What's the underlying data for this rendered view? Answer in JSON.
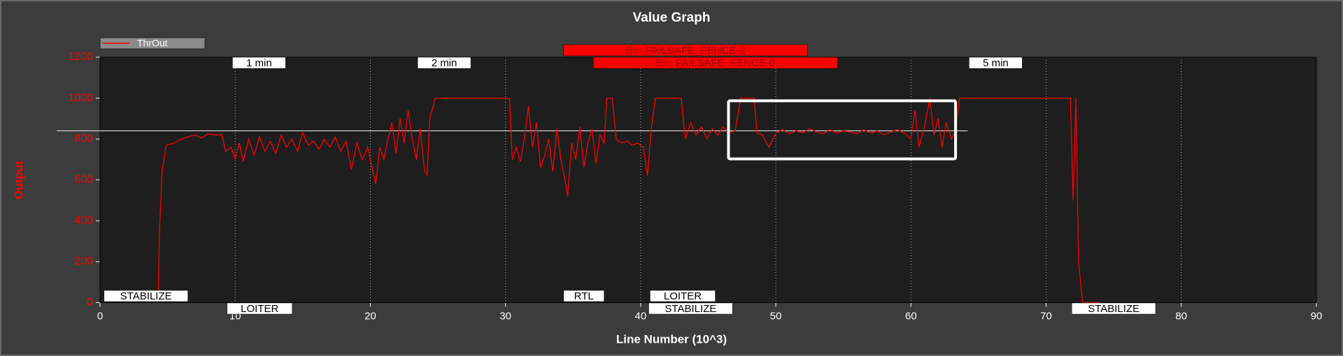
{
  "chart_data": {
    "type": "line",
    "title": "Value Graph",
    "xlabel": "Line Number (10^3)",
    "ylabel": "Output",
    "x": [
      4.3,
      4.4,
      4.6,
      4.9,
      5.5,
      6,
      6.5,
      7,
      7.5,
      8,
      8.5,
      9,
      9.3,
      9.7,
      10,
      10.3,
      10.6,
      11,
      11.4,
      11.8,
      12.2,
      12.6,
      13,
      13.4,
      13.8,
      14.2,
      14.6,
      15,
      15.4,
      15.8,
      16.2,
      16.6,
      17,
      17.4,
      17.8,
      18.2,
      18.6,
      19,
      19.4,
      19.8,
      20.2,
      20.4,
      20.7,
      21,
      21.3,
      21.6,
      21.9,
      22.2,
      22.5,
      22.8,
      23.1,
      23.4,
      23.7,
      24,
      24.2,
      24.4,
      24.8,
      30.3,
      30.5,
      30.8,
      31.1,
      31.4,
      31.7,
      32,
      32.3,
      32.6,
      32.9,
      33.2,
      33.5,
      33.8,
      34.1,
      34.4,
      34.6,
      34.9,
      35.2,
      35.5,
      35.8,
      36.1,
      36.4,
      36.7,
      37,
      37.3,
      37.5,
      37.9,
      38.2,
      38.6,
      39,
      39.4,
      39.8,
      40.2,
      40.5,
      40.8,
      41.1,
      43,
      43.3,
      43.7,
      44.1,
      44.5,
      44.9,
      45.3,
      45.7,
      46.1,
      46.5,
      47,
      47.4,
      48.4,
      48.6,
      49,
      49.5,
      50,
      50.5,
      51,
      51.5,
      52,
      52.5,
      53,
      53.5,
      54,
      54.5,
      55,
      55.5,
      56,
      56.5,
      57,
      57.5,
      58,
      58.5,
      59,
      59.5,
      60,
      60.3,
      60.6,
      61,
      61.4,
      61.7,
      62,
      62.3,
      62.6,
      63,
      63.3,
      63.6,
      71.8,
      72,
      72.2,
      72.4,
      72.7,
      74
    ],
    "series": [
      {
        "name": "ThrOut",
        "color": "#ff0000",
        "values": [
          0,
          350,
          650,
          770,
          780,
          800,
          810,
          820,
          805,
          825,
          820,
          822,
          740,
          760,
          700,
          780,
          690,
          800,
          720,
          810,
          740,
          790,
          730,
          820,
          760,
          800,
          740,
          830,
          770,
          790,
          750,
          800,
          760,
          810,
          740,
          790,
          650,
          780,
          700,
          760,
          640,
          580,
          760,
          700,
          800,
          880,
          730,
          900,
          780,
          940,
          800,
          700,
          850,
          650,
          620,
          900,
          1000,
          1000,
          700,
          760,
          690,
          800,
          960,
          760,
          880,
          660,
          720,
          800,
          640,
          850,
          700,
          600,
          520,
          780,
          700,
          860,
          660,
          780,
          850,
          680,
          820,
          780,
          1000,
          1000,
          800,
          780,
          790,
          770,
          780,
          760,
          620,
          860,
          1000,
          1000,
          800,
          880,
          820,
          860,
          800,
          850,
          820,
          860,
          830,
          840,
          1000,
          1000,
          830,
          820,
          760,
          830,
          845,
          825,
          840,
          830,
          850,
          835,
          825,
          845,
          830,
          840,
          835,
          825,
          845,
          830,
          840,
          820,
          835,
          845,
          830,
          800,
          940,
          760,
          860,
          1000,
          820,
          900,
          760,
          880,
          800,
          840,
          1000,
          1000,
          500,
          1000,
          200,
          0,
          0
        ]
      }
    ],
    "xlim": [
      0,
      90
    ],
    "xticks": [
      0,
      10,
      20,
      30,
      40,
      50,
      60,
      70,
      80,
      90
    ],
    "ylim": [
      0,
      1200
    ],
    "yticks": [
      0,
      200,
      400,
      600,
      800,
      1000,
      1200
    ],
    "grid": true,
    "legend": "top-left",
    "events": [
      {
        "text": "1 min",
        "x": 9.8
      },
      {
        "text": "2 min",
        "x": 23.5
      },
      {
        "text": "5 min",
        "x": 64.3
      }
    ],
    "modes": [
      {
        "text": "STABILIZE",
        "x": 0.3
      },
      {
        "text": "LOITER",
        "x": 9.4
      },
      {
        "text": "RTL",
        "x": 34.3
      },
      {
        "text": "LOITER",
        "x": 40.7
      },
      {
        "text": "STABILIZE",
        "x": 40.6
      },
      {
        "text": "STABILIZE",
        "x": 71.9
      }
    ],
    "errors": [
      {
        "text": "Err: FAILSAFE_FENCE-2",
        "x": 34.3
      },
      {
        "text": "Err: FAILSAFE_FENCE-0",
        "x": 36.5
      }
    ],
    "reference_line": {
      "y": 840,
      "x": [
        -3.2,
        64.2
      ]
    },
    "highlight": {
      "x": [
        46.5,
        63.3
      ],
      "y": [
        703,
        987
      ]
    }
  }
}
